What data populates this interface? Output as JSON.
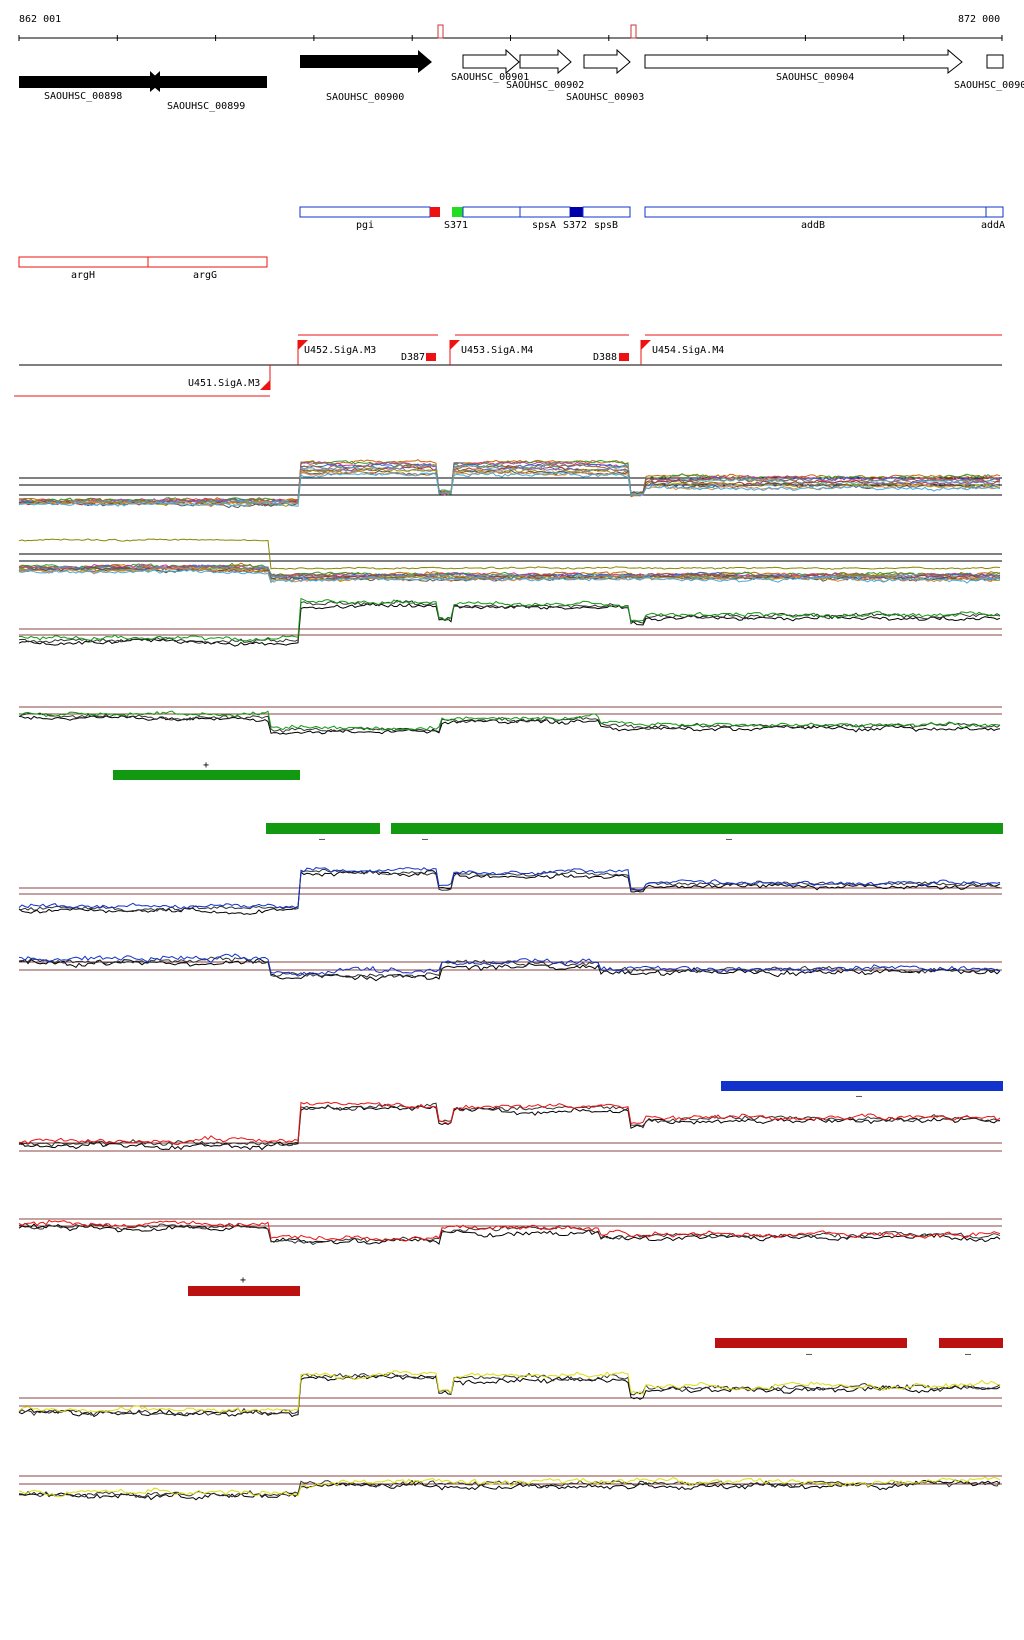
{
  "coords": {
    "start": "862 001",
    "end": "872 000"
  },
  "palette": {
    "red": "#ee1111",
    "darkred": "#bb1111",
    "green": "#119911",
    "blue": "#1133cc",
    "navy": "#0000aa",
    "lime": "#22dd22",
    "yellow": "#dddd11",
    "brown": "#884444"
  },
  "genes": [
    {
      "label": "SAOUHSC_00898",
      "strand": "+"
    },
    {
      "label": "SAOUHSC_00899",
      "strand": "-"
    },
    {
      "label": "SAOUHSC_00900",
      "strand": "+"
    },
    {
      "label": "SAOUHSC_00901",
      "strand": "+"
    },
    {
      "label": "SAOUHSC_00902",
      "strand": "+"
    },
    {
      "label": "SAOUHSC_00903",
      "strand": "+"
    },
    {
      "label": "SAOUHSC_00904",
      "strand": "+"
    },
    {
      "label": "SAOUHSC_0090",
      "strand": "+"
    }
  ],
  "annotations_blue": [
    "pgi",
    "S371",
    "spsA",
    "S372",
    "spsB",
    "addB",
    "addA"
  ],
  "annotations_red": [
    "argH",
    "argG"
  ],
  "promoters": [
    "U452.SigA.M3",
    "U453.SigA.M4",
    "U454.SigA.M4",
    "U451.SigA.M3"
  ],
  "terminators": [
    "D387",
    "D388"
  ],
  "segments": {
    "green_plus": "+",
    "green_minus": [
      "–",
      "–",
      "–"
    ],
    "blue_minus": "–",
    "red_plus": "+",
    "red_minus": [
      "–",
      "–"
    ]
  }
}
